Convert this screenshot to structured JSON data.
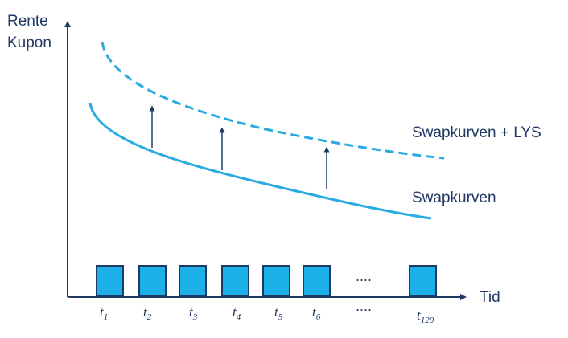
{
  "axes": {
    "y_label_line1": "Rente",
    "y_label_line2": "Kupon",
    "x_label": "Tid"
  },
  "curves": {
    "upper_label": "Swapkurven + LYS",
    "lower_label": "Swapkurven"
  },
  "payments": {
    "ellipsis": "....",
    "ticks": [
      {
        "base": "t",
        "sub": "1"
      },
      {
        "base": "t",
        "sub": "2"
      },
      {
        "base": "t",
        "sub": "3"
      },
      {
        "base": "t",
        "sub": "4"
      },
      {
        "base": "t",
        "sub": "5"
      },
      {
        "base": "t",
        "sub": "6"
      },
      {
        "base": "t",
        "sub": "120"
      }
    ]
  },
  "colors": {
    "axis": "#1f3864",
    "curve": "#29abe2",
    "box_fill": "#1cb0e8",
    "box_stroke": "#1f3864"
  }
}
